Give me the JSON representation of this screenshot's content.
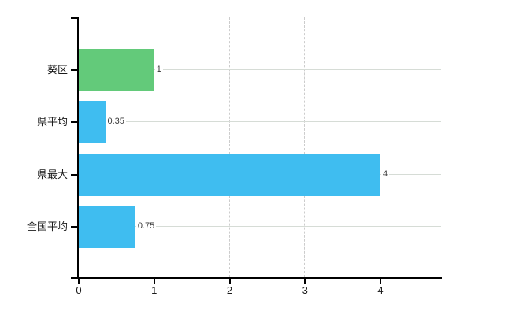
{
  "chart_data": {
    "type": "bar",
    "orientation": "horizontal",
    "title": "",
    "xlabel": "",
    "ylabel": "",
    "categories": [
      "葵区",
      "県平均",
      "県最大",
      "全国平均"
    ],
    "values": [
      1,
      0.35,
      4,
      0.75
    ],
    "value_labels": [
      "1",
      "0.35",
      "4",
      "0.75"
    ],
    "bar_colors": [
      "#63ca7a",
      "#3fbdf0",
      "#3fbdf0",
      "#3fbdf0"
    ],
    "xlim": [
      0,
      4.8
    ],
    "xticks": [
      0,
      1,
      2,
      3,
      4
    ],
    "xtick_labels": [
      "0",
      "1",
      "2",
      "3",
      "4"
    ],
    "grid": true,
    "legend_position": "none"
  },
  "colors": {
    "background": "#ffffff",
    "bar_green": "#63ca7a",
    "bar_blue": "#3fbdf0",
    "axis": "#000000",
    "gridline_vertical": "#cccccc",
    "gridline_horizontal": "#d6dcd6",
    "top_border": "#c4c4c4",
    "text": "#1a1a1a",
    "value_text": "#3a3a3a"
  }
}
